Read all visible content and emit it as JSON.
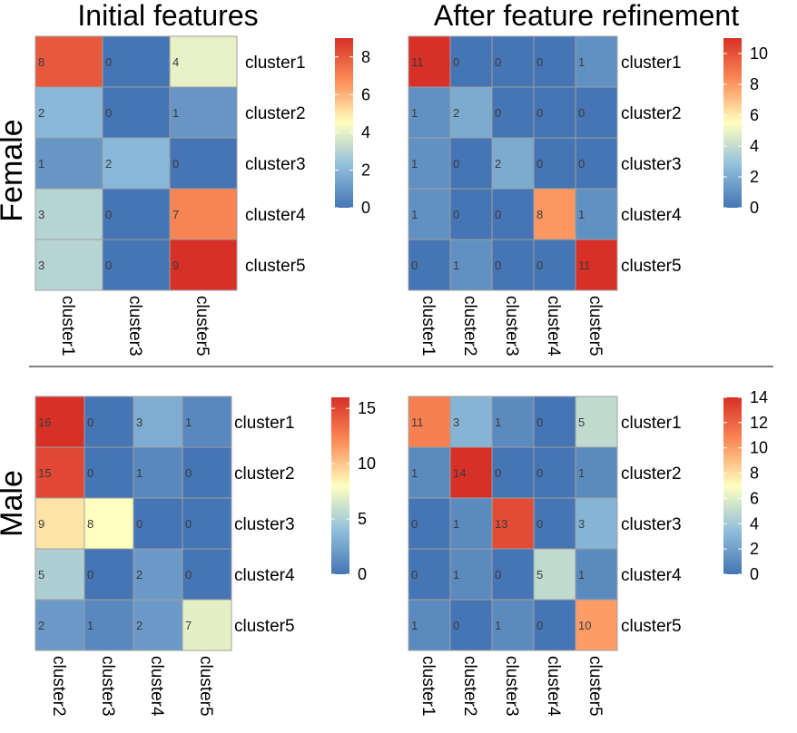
{
  "headings": {
    "initial": "Initial features",
    "refined": "After feature refinement",
    "female": "Female",
    "male": "Male"
  },
  "chart_data": [
    {
      "type": "heatmap",
      "group": "Female",
      "column_set": "Initial features",
      "rows": [
        "cluster1",
        "cluster2",
        "cluster3",
        "cluster4",
        "cluster5"
      ],
      "cols": [
        "cluster1",
        "cluster3",
        "cluster5"
      ],
      "values": [
        [
          8,
          0,
          4
        ],
        [
          2,
          0,
          1
        ],
        [
          1,
          2,
          0
        ],
        [
          3,
          0,
          7
        ],
        [
          3,
          0,
          9
        ]
      ],
      "color_range": [
        0,
        9
      ],
      "legend_ticks": [
        0,
        2,
        4,
        6,
        8
      ]
    },
    {
      "type": "heatmap",
      "group": "Female",
      "column_set": "After feature refinement",
      "rows": [
        "cluster1",
        "cluster2",
        "cluster3",
        "cluster4",
        "cluster5"
      ],
      "cols": [
        "cluster1",
        "cluster2",
        "cluster3",
        "cluster4",
        "cluster5"
      ],
      "values": [
        [
          11,
          0,
          0,
          0,
          1
        ],
        [
          1,
          2,
          0,
          0,
          0
        ],
        [
          1,
          0,
          2,
          0,
          0
        ],
        [
          1,
          0,
          0,
          8,
          1
        ],
        [
          0,
          1,
          0,
          0,
          11
        ]
      ],
      "color_range": [
        0,
        11
      ],
      "legend_ticks": [
        0,
        2,
        4,
        6,
        8,
        10
      ]
    },
    {
      "type": "heatmap",
      "group": "Male",
      "column_set": "Initial features",
      "rows": [
        "cluster1",
        "cluster2",
        "cluster3",
        "cluster4",
        "cluster5"
      ],
      "cols": [
        "cluster2",
        "cluster3",
        "cluster4",
        "cluster5"
      ],
      "values": [
        [
          16,
          0,
          3,
          1
        ],
        [
          15,
          0,
          1,
          0
        ],
        [
          9,
          8,
          0,
          0
        ],
        [
          5,
          0,
          2,
          0
        ],
        [
          2,
          1,
          2,
          7
        ]
      ],
      "color_range": [
        0,
        16
      ],
      "legend_ticks": [
        0,
        5,
        10,
        15
      ]
    },
    {
      "type": "heatmap",
      "group": "Male",
      "column_set": "After feature refinement",
      "rows": [
        "cluster1",
        "cluster2",
        "cluster3",
        "cluster4",
        "cluster5"
      ],
      "cols": [
        "cluster1",
        "cluster2",
        "cluster3",
        "cluster4",
        "cluster5"
      ],
      "values": [
        [
          11,
          3,
          1,
          0,
          5
        ],
        [
          1,
          14,
          0,
          0,
          1
        ],
        [
          0,
          1,
          13,
          0,
          3
        ],
        [
          0,
          1,
          0,
          5,
          1
        ],
        [
          1,
          0,
          1,
          0,
          10
        ]
      ],
      "color_range": [
        0,
        14
      ],
      "legend_ticks": [
        0,
        2,
        4,
        6,
        8,
        10,
        12,
        14
      ]
    }
  ]
}
